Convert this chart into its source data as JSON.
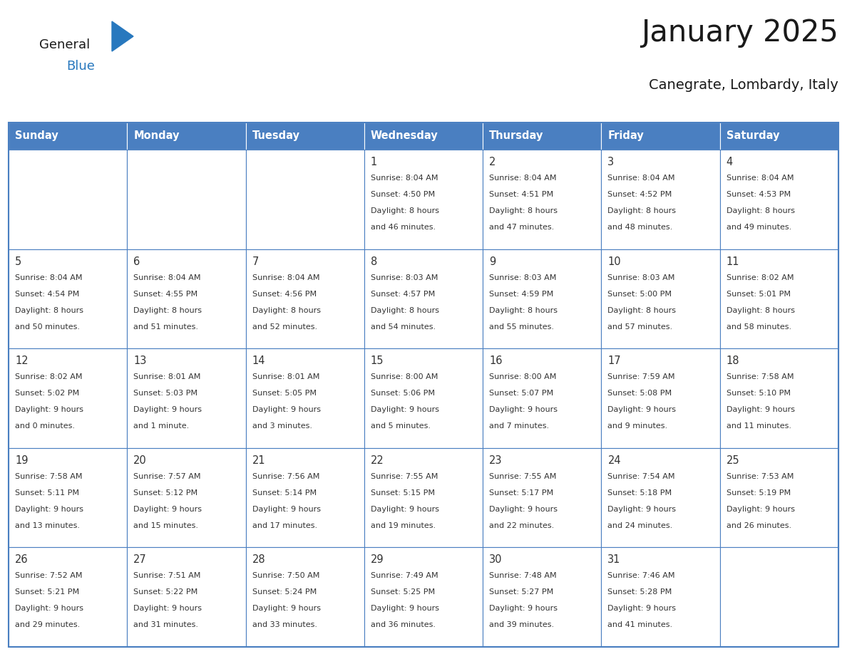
{
  "title": "January 2025",
  "subtitle": "Canegrate, Lombardy, Italy",
  "header_color": "#4A7FC1",
  "header_text_color": "#FFFFFF",
  "cell_bg_color": "#FFFFFF",
  "border_color": "#4A7FC1",
  "title_color": "#1a1a1a",
  "subtitle_color": "#1a1a1a",
  "day_text_color": "#333333",
  "days_of_week": [
    "Sunday",
    "Monday",
    "Tuesday",
    "Wednesday",
    "Thursday",
    "Friday",
    "Saturday"
  ],
  "logo_general_color": "#1a1a1a",
  "logo_blue_color": "#2878BE",
  "logo_triangle_color": "#2878BE",
  "calendar": [
    [
      {
        "day": "",
        "sunrise": "",
        "sunset": "",
        "daylight": ""
      },
      {
        "day": "",
        "sunrise": "",
        "sunset": "",
        "daylight": ""
      },
      {
        "day": "",
        "sunrise": "",
        "sunset": "",
        "daylight": ""
      },
      {
        "day": "1",
        "sunrise": "8:04 AM",
        "sunset": "4:50 PM",
        "daylight": "8 hours\nand 46 minutes."
      },
      {
        "day": "2",
        "sunrise": "8:04 AM",
        "sunset": "4:51 PM",
        "daylight": "8 hours\nand 47 minutes."
      },
      {
        "day": "3",
        "sunrise": "8:04 AM",
        "sunset": "4:52 PM",
        "daylight": "8 hours\nand 48 minutes."
      },
      {
        "day": "4",
        "sunrise": "8:04 AM",
        "sunset": "4:53 PM",
        "daylight": "8 hours\nand 49 minutes."
      }
    ],
    [
      {
        "day": "5",
        "sunrise": "8:04 AM",
        "sunset": "4:54 PM",
        "daylight": "8 hours\nand 50 minutes."
      },
      {
        "day": "6",
        "sunrise": "8:04 AM",
        "sunset": "4:55 PM",
        "daylight": "8 hours\nand 51 minutes."
      },
      {
        "day": "7",
        "sunrise": "8:04 AM",
        "sunset": "4:56 PM",
        "daylight": "8 hours\nand 52 minutes."
      },
      {
        "day": "8",
        "sunrise": "8:03 AM",
        "sunset": "4:57 PM",
        "daylight": "8 hours\nand 54 minutes."
      },
      {
        "day": "9",
        "sunrise": "8:03 AM",
        "sunset": "4:59 PM",
        "daylight": "8 hours\nand 55 minutes."
      },
      {
        "day": "10",
        "sunrise": "8:03 AM",
        "sunset": "5:00 PM",
        "daylight": "8 hours\nand 57 minutes."
      },
      {
        "day": "11",
        "sunrise": "8:02 AM",
        "sunset": "5:01 PM",
        "daylight": "8 hours\nand 58 minutes."
      }
    ],
    [
      {
        "day": "12",
        "sunrise": "8:02 AM",
        "sunset": "5:02 PM",
        "daylight": "9 hours\nand 0 minutes."
      },
      {
        "day": "13",
        "sunrise": "8:01 AM",
        "sunset": "5:03 PM",
        "daylight": "9 hours\nand 1 minute."
      },
      {
        "day": "14",
        "sunrise": "8:01 AM",
        "sunset": "5:05 PM",
        "daylight": "9 hours\nand 3 minutes."
      },
      {
        "day": "15",
        "sunrise": "8:00 AM",
        "sunset": "5:06 PM",
        "daylight": "9 hours\nand 5 minutes."
      },
      {
        "day": "16",
        "sunrise": "8:00 AM",
        "sunset": "5:07 PM",
        "daylight": "9 hours\nand 7 minutes."
      },
      {
        "day": "17",
        "sunrise": "7:59 AM",
        "sunset": "5:08 PM",
        "daylight": "9 hours\nand 9 minutes."
      },
      {
        "day": "18",
        "sunrise": "7:58 AM",
        "sunset": "5:10 PM",
        "daylight": "9 hours\nand 11 minutes."
      }
    ],
    [
      {
        "day": "19",
        "sunrise": "7:58 AM",
        "sunset": "5:11 PM",
        "daylight": "9 hours\nand 13 minutes."
      },
      {
        "day": "20",
        "sunrise": "7:57 AM",
        "sunset": "5:12 PM",
        "daylight": "9 hours\nand 15 minutes."
      },
      {
        "day": "21",
        "sunrise": "7:56 AM",
        "sunset": "5:14 PM",
        "daylight": "9 hours\nand 17 minutes."
      },
      {
        "day": "22",
        "sunrise": "7:55 AM",
        "sunset": "5:15 PM",
        "daylight": "9 hours\nand 19 minutes."
      },
      {
        "day": "23",
        "sunrise": "7:55 AM",
        "sunset": "5:17 PM",
        "daylight": "9 hours\nand 22 minutes."
      },
      {
        "day": "24",
        "sunrise": "7:54 AM",
        "sunset": "5:18 PM",
        "daylight": "9 hours\nand 24 minutes."
      },
      {
        "day": "25",
        "sunrise": "7:53 AM",
        "sunset": "5:19 PM",
        "daylight": "9 hours\nand 26 minutes."
      }
    ],
    [
      {
        "day": "26",
        "sunrise": "7:52 AM",
        "sunset": "5:21 PM",
        "daylight": "9 hours\nand 29 minutes."
      },
      {
        "day": "27",
        "sunrise": "7:51 AM",
        "sunset": "5:22 PM",
        "daylight": "9 hours\nand 31 minutes."
      },
      {
        "day": "28",
        "sunrise": "7:50 AM",
        "sunset": "5:24 PM",
        "daylight": "9 hours\nand 33 minutes."
      },
      {
        "day": "29",
        "sunrise": "7:49 AM",
        "sunset": "5:25 PM",
        "daylight": "9 hours\nand 36 minutes."
      },
      {
        "day": "30",
        "sunrise": "7:48 AM",
        "sunset": "5:27 PM",
        "daylight": "9 hours\nand 39 minutes."
      },
      {
        "day": "31",
        "sunrise": "7:46 AM",
        "sunset": "5:28 PM",
        "daylight": "9 hours\nand 41 minutes."
      },
      {
        "day": "",
        "sunrise": "",
        "sunset": "",
        "daylight": ""
      }
    ]
  ]
}
